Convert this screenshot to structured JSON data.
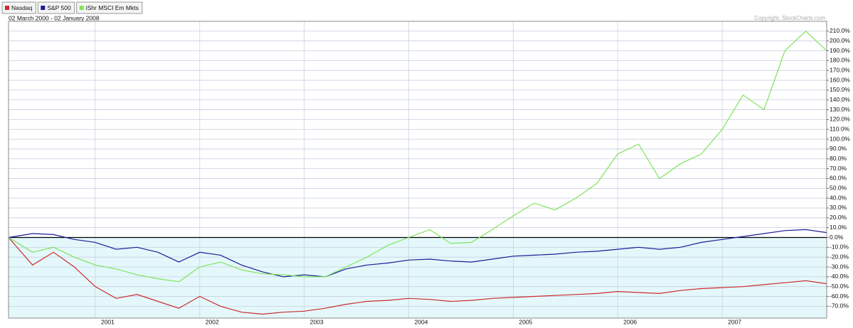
{
  "chart_data": {
    "type": "line",
    "subtitle": "02 March 2000 - 02 January 2008",
    "copyright": "Copyright, StockCharts.com",
    "x": [
      2000.17,
      2000.4,
      2000.6,
      2000.8,
      2001.0,
      2001.2,
      2001.4,
      2001.6,
      2001.8,
      2002.0,
      2002.2,
      2002.4,
      2002.6,
      2002.8,
      2003.0,
      2003.2,
      2003.4,
      2003.6,
      2003.8,
      2004.0,
      2004.2,
      2004.4,
      2004.6,
      2004.8,
      2005.0,
      2005.2,
      2005.4,
      2005.6,
      2005.8,
      2006.0,
      2006.2,
      2006.4,
      2006.6,
      2006.8,
      2007.0,
      2007.2,
      2007.4,
      2007.6,
      2007.8,
      2008.0
    ],
    "series": [
      {
        "name": "Nasdaq",
        "color": "#cc2b2b",
        "values": [
          0,
          -28,
          -15,
          -30,
          -50,
          -62,
          -58,
          -65,
          -72,
          -60,
          -70,
          -76,
          -78,
          -76,
          -75,
          -72,
          -68,
          -65,
          -64,
          -62,
          -63,
          -65,
          -64,
          -62,
          -61,
          -60,
          -59,
          -58,
          -57,
          -55,
          -56,
          -57,
          -54,
          -52,
          -51,
          -50,
          -48,
          -46,
          -44,
          -47
        ]
      },
      {
        "name": "S&P 500",
        "color": "#1c1c96",
        "values": [
          0,
          4,
          3,
          -2,
          -5,
          -12,
          -10,
          -15,
          -25,
          -15,
          -18,
          -28,
          -35,
          -40,
          -38,
          -40,
          -32,
          -28,
          -26,
          -23,
          -22,
          -24,
          -25,
          -22,
          -19,
          -18,
          -17,
          -15,
          -14,
          -12,
          -10,
          -12,
          -10,
          -5,
          -2,
          1,
          4,
          7,
          8,
          5
        ]
      },
      {
        "name": "iShr MSCI Em Mkts",
        "color": "#7fe35c",
        "values": [
          0,
          -15,
          -10,
          -20,
          -28,
          -32,
          -38,
          -42,
          -45,
          -30,
          -25,
          -33,
          -37,
          -38,
          -40,
          -40,
          -30,
          -20,
          -8,
          0,
          8,
          -6,
          -5,
          8,
          22,
          35,
          28,
          40,
          55,
          85,
          95,
          60,
          75,
          85,
          110,
          145,
          130,
          190,
          210,
          190
        ]
      }
    ],
    "xlim": [
      2000.17,
      2008.0
    ],
    "xticks": [
      2001,
      2002,
      2003,
      2004,
      2005,
      2006,
      2007
    ],
    "ylim": [
      -82,
      220
    ],
    "yticks": [
      {
        "value": -70,
        "label": "-70.0%"
      },
      {
        "value": -60,
        "label": "-60.0%"
      },
      {
        "value": -50,
        "label": "-50.0%"
      },
      {
        "value": -40,
        "label": "-40.0%"
      },
      {
        "value": -30,
        "label": "-30.0%"
      },
      {
        "value": -20,
        "label": "-20.0%"
      },
      {
        "value": -10,
        "label": "-10.0%"
      },
      {
        "value": 0,
        "label": "0.0%"
      },
      {
        "value": 10,
        "label": "10.0%"
      },
      {
        "value": 20,
        "label": "20.0%"
      },
      {
        "value": 30,
        "label": "30.0%"
      },
      {
        "value": 40,
        "label": "40.0%"
      },
      {
        "value": 50,
        "label": "50.0%"
      },
      {
        "value": 60,
        "label": "60.0%"
      },
      {
        "value": 70,
        "label": "70.0%"
      },
      {
        "value": 80,
        "label": "80.0%"
      },
      {
        "value": 90,
        "label": "90.0%"
      },
      {
        "value": 100,
        "label": "100.0%"
      },
      {
        "value": 110,
        "label": "110.0%"
      },
      {
        "value": 120,
        "label": "120.0%"
      },
      {
        "value": 130,
        "label": "130.0%"
      },
      {
        "value": 140,
        "label": "140.0%"
      },
      {
        "value": 150,
        "label": "150.0%"
      },
      {
        "value": 160,
        "label": "160.0%"
      },
      {
        "value": 170,
        "label": "170.0%"
      },
      {
        "value": 180,
        "label": "180.0%"
      },
      {
        "value": 190,
        "label": "190.0%"
      },
      {
        "value": 200,
        "label": "200.0%"
      },
      {
        "value": 210,
        "label": "210.0%"
      }
    ],
    "grid": true
  }
}
